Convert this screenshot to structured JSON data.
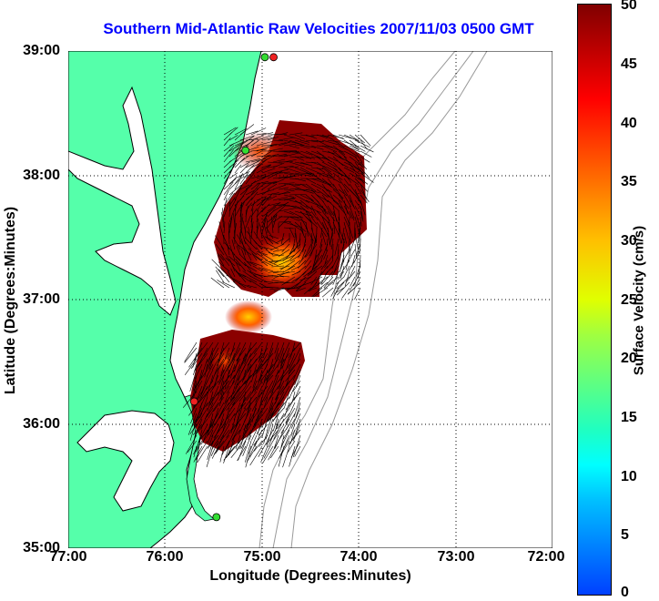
{
  "title": "Southern Mid-Atlantic Raw Velocities 2007/11/03 0500 GMT",
  "xlabel": "Longitude (Degrees:Minutes)",
  "ylabel": "Latitude (Degrees:Minutes)",
  "colorbar_label": "Surface Velocity (cm/s)",
  "xticks": [
    "77:00",
    "76:00",
    "75:00",
    "74:00",
    "73:00",
    "72:00"
  ],
  "yticks": [
    "39:00",
    "38:00",
    "37:00",
    "36:00",
    "35:00"
  ],
  "cbticks": [
    "50",
    "45",
    "40",
    "35",
    "30",
    "25",
    "20",
    "15",
    "10",
    "5",
    "0"
  ],
  "colors": {
    "land": "#55ffaa",
    "coastline": "#000000",
    "isobath": "#999999",
    "grid": "#000000",
    "title": "#0000ff",
    "station_green": "#33dd33",
    "station_red": "#ee2222"
  },
  "chart_data": {
    "type": "heatmap",
    "xlim": [
      -77,
      -72
    ],
    "ylim": [
      35,
      39
    ],
    "colorbar_range": [
      0,
      50
    ],
    "grid": true,
    "stations": [
      {
        "lon": -74.88,
        "lat": 38.95,
        "status": "red"
      },
      {
        "lon": -74.97,
        "lat": 38.95,
        "status": "green"
      },
      {
        "lon": -75.17,
        "lat": 38.2,
        "status": "green"
      },
      {
        "lon": -75.7,
        "lat": 36.18,
        "status": "red"
      },
      {
        "lon": -75.47,
        "lat": 35.25,
        "status": "green"
      }
    ]
  }
}
